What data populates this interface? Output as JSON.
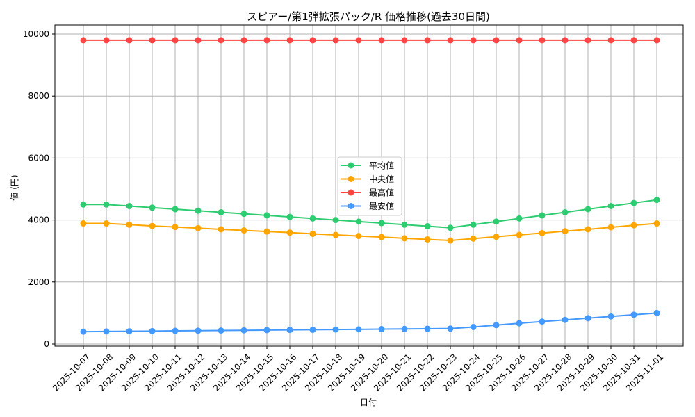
{
  "chart_data": {
    "type": "line",
    "title": "スピアー/第1弾拡張パック/R 価格推移(過去30日間)",
    "xlabel": "日付",
    "ylabel": "値 (円)",
    "ylim": [
      0,
      10000
    ],
    "yticks": [
      0,
      2000,
      4000,
      6000,
      8000,
      10000
    ],
    "grid": true,
    "legend_position": "center",
    "x": [
      "2025-10-07",
      "2025-10-08",
      "2025-10-09",
      "2025-10-10",
      "2025-10-11",
      "2025-10-12",
      "2025-10-13",
      "2025-10-14",
      "2025-10-15",
      "2025-10-16",
      "2025-10-17",
      "2025-10-18",
      "2025-10-19",
      "2025-10-20",
      "2025-10-21",
      "2025-10-22",
      "2025-10-23",
      "2025-10-24",
      "2025-10-25",
      "2025-10-26",
      "2025-10-27",
      "2025-10-28",
      "2025-10-29",
      "2025-10-30",
      "2025-10-31",
      "2025-11-01"
    ],
    "series": [
      {
        "name": "平均値",
        "color": "#2ecc71",
        "values": [
          4500,
          4500,
          4450,
          4400,
          4350,
          4300,
          4250,
          4200,
          4150,
          4100,
          4050,
          4000,
          3950,
          3900,
          3850,
          3800,
          3750,
          3850,
          3950,
          4050,
          4150,
          4250,
          4350,
          4450,
          4550,
          4650
        ]
      },
      {
        "name": "中央値",
        "color": "#ffa500",
        "values": [
          3890,
          3890,
          3850,
          3810,
          3775,
          3740,
          3700,
          3665,
          3630,
          3595,
          3555,
          3520,
          3485,
          3450,
          3410,
          3375,
          3340,
          3400,
          3460,
          3520,
          3580,
          3640,
          3700,
          3765,
          3830,
          3890
        ]
      },
      {
        "name": "最高値",
        "color": "#ff4444",
        "values": [
          9800,
          9800,
          9800,
          9800,
          9800,
          9800,
          9800,
          9800,
          9800,
          9800,
          9800,
          9800,
          9800,
          9800,
          9800,
          9800,
          9800,
          9800,
          9800,
          9800,
          9800,
          9800,
          9800,
          9800,
          9800,
          9800
        ]
      },
      {
        "name": "最安値",
        "color": "#4499ff",
        "values": [
          400,
          406,
          412,
          419,
          425,
          431,
          437,
          444,
          450,
          456,
          462,
          469,
          475,
          481,
          487,
          494,
          500,
          550,
          610,
          670,
          725,
          780,
          835,
          890,
          945,
          1000
        ]
      }
    ]
  }
}
